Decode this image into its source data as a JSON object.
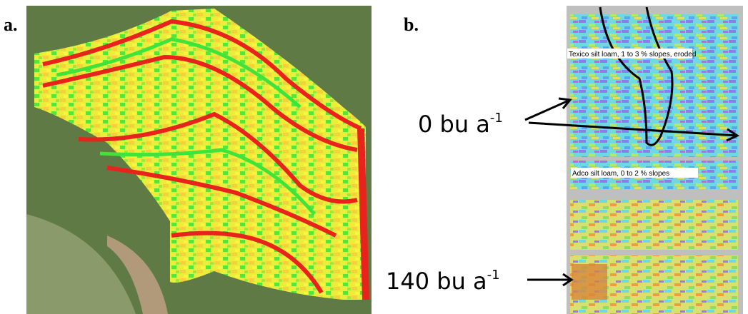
{
  "panels": [
    {
      "label": "a."
    },
    {
      "label": "b.",
      "soil_labels": [
        "Texico silt loam, 1 to 3 % slopes, eroded",
        "Adco silt loam, 0 to 2 % slopes"
      ],
      "annotations": [
        {
          "text": "0 bu a",
          "exponent": "-1"
        },
        {
          "text": "140 bu a",
          "exponent": "-1"
        }
      ]
    }
  ]
}
